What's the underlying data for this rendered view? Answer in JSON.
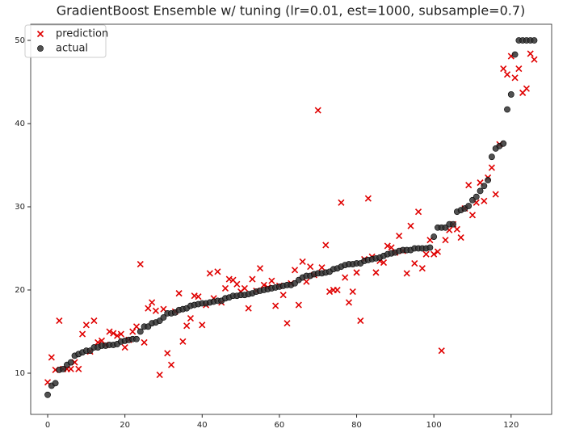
{
  "chart_data": {
    "type": "scatter",
    "title": "GradientBoost Ensemble w/ tuning (lr=0.01, est=1000, subsample=0.7)",
    "x": [
      0,
      1,
      2,
      3,
      4,
      5,
      6,
      7,
      8,
      9,
      10,
      11,
      12,
      13,
      14,
      15,
      16,
      17,
      18,
      19,
      20,
      21,
      22,
      23,
      24,
      25,
      26,
      27,
      28,
      29,
      30,
      31,
      32,
      33,
      34,
      35,
      36,
      37,
      38,
      39,
      40,
      41,
      42,
      43,
      44,
      45,
      46,
      47,
      48,
      49,
      50,
      51,
      52,
      53,
      54,
      55,
      56,
      57,
      58,
      59,
      60,
      61,
      62,
      63,
      64,
      65,
      66,
      67,
      68,
      69,
      70,
      71,
      72,
      73,
      74,
      75,
      76,
      77,
      78,
      79,
      80,
      81,
      82,
      83,
      84,
      85,
      86,
      87,
      88,
      89,
      90,
      91,
      92,
      93,
      94,
      95,
      96,
      97,
      98,
      99,
      100,
      101,
      102,
      103,
      104,
      105,
      106,
      107,
      108,
      109,
      110,
      111,
      112,
      113,
      114,
      115,
      116,
      117,
      118,
      119,
      120,
      121,
      122,
      123,
      124,
      125,
      126
    ],
    "series": [
      {
        "name": "prediction",
        "color": "#e00000",
        "marker": "x",
        "values": [
          8.9,
          11.9,
          10.4,
          16.3,
          10.5,
          10.5,
          10.5,
          11.3,
          10.5,
          14.7,
          15.8,
          12.6,
          16.3,
          13.7,
          13.9,
          13.4,
          15.0,
          14.8,
          14.5,
          14.7,
          13.1,
          14.0,
          15.0,
          15.6,
          23.1,
          13.7,
          17.8,
          18.5,
          17.5,
          9.8,
          17.7,
          12.4,
          11.0,
          17.4,
          19.6,
          13.8,
          15.7,
          16.6,
          19.3,
          19.2,
          15.8,
          18.2,
          22.0,
          19.0,
          22.2,
          18.5,
          20.2,
          21.3,
          21.2,
          20.7,
          19.8,
          20.2,
          17.8,
          21.3,
          19.9,
          22.6,
          20.6,
          20.3,
          21.1,
          18.1,
          20.5,
          19.4,
          16.0,
          20.8,
          22.4,
          18.2,
          23.4,
          21.0,
          22.8,
          21.8,
          41.6,
          22.7,
          25.4,
          19.8,
          20.0,
          20.0,
          30.5,
          21.5,
          18.5,
          19.8,
          22.1,
          16.3,
          23.7,
          31.0,
          24.0,
          22.1,
          23.5,
          23.3,
          25.3,
          25.1,
          24.5,
          26.5,
          24.7,
          22.0,
          27.7,
          23.2,
          29.4,
          22.6,
          24.3,
          26.0,
          24.3,
          24.6,
          12.7,
          26.0,
          27.2,
          27.9,
          27.3,
          26.3,
          29.8,
          32.6,
          29.0,
          30.5,
          32.9,
          30.7,
          33.5,
          34.7,
          31.5,
          37.5,
          46.6,
          45.9,
          48.1,
          45.5,
          46.6,
          43.7,
          44.2,
          48.4,
          47.7
        ]
      },
      {
        "name": "actual",
        "color": "#333333",
        "marker": "o",
        "values": [
          7.4,
          8.5,
          8.8,
          10.4,
          10.5,
          11.0,
          11.3,
          12.1,
          12.3,
          12.5,
          12.7,
          12.7,
          13.1,
          13.1,
          13.3,
          13.3,
          13.4,
          13.4,
          13.5,
          13.8,
          13.9,
          14.0,
          14.1,
          14.1,
          15.0,
          15.6,
          15.6,
          16.0,
          16.1,
          16.3,
          16.7,
          17.2,
          17.2,
          17.3,
          17.6,
          17.7,
          17.8,
          18.1,
          18.2,
          18.3,
          18.4,
          18.4,
          18.5,
          18.6,
          18.7,
          18.7,
          19.0,
          19.1,
          19.3,
          19.3,
          19.4,
          19.4,
          19.5,
          19.6,
          19.8,
          19.9,
          20.0,
          20.1,
          20.2,
          20.3,
          20.4,
          20.5,
          20.6,
          20.6,
          20.8,
          21.2,
          21.5,
          21.7,
          21.7,
          21.9,
          22.0,
          22.0,
          22.1,
          22.2,
          22.5,
          22.6,
          22.8,
          23.0,
          23.1,
          23.1,
          23.2,
          23.2,
          23.5,
          23.6,
          23.7,
          23.8,
          23.9,
          24.1,
          24.3,
          24.4,
          24.5,
          24.7,
          24.8,
          24.8,
          24.8,
          25.0,
          25.0,
          25.0,
          25.0,
          25.1,
          26.4,
          27.5,
          27.5,
          27.5,
          27.9,
          27.9,
          29.4,
          29.6,
          29.8,
          30.1,
          30.8,
          31.2,
          31.9,
          32.5,
          33.2,
          36.0,
          37.0,
          37.3,
          37.6,
          41.7,
          43.5,
          48.3,
          50,
          50,
          50,
          50,
          50
        ]
      }
    ],
    "xlim": [
      -4.4,
      130.5
    ],
    "ylim": [
      5.05,
      51.94
    ],
    "xticks": [
      0,
      20,
      40,
      60,
      80,
      100,
      120
    ],
    "yticks": [
      10,
      20,
      30,
      40,
      50
    ],
    "legend": "upper left"
  }
}
